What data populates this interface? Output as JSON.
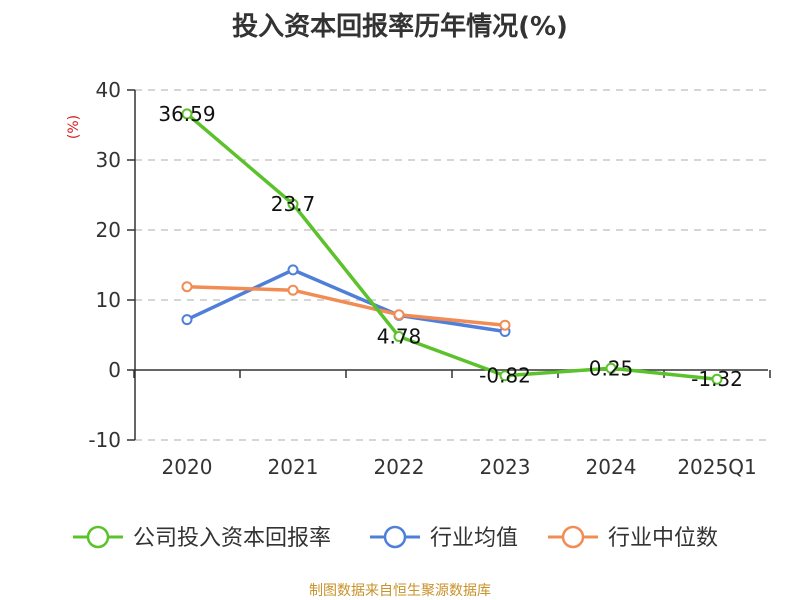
{
  "chart_data": {
    "type": "line",
    "title": "投入资本回报率历年情况(%)",
    "ylabel": "(%)",
    "xlabel": "",
    "ylim": [
      -10,
      40
    ],
    "yticks": [
      -10,
      0,
      10,
      20,
      30,
      40
    ],
    "categories": [
      "2020",
      "2021",
      "2022",
      "2023",
      "2024",
      "2025Q1"
    ],
    "grid": true,
    "legend_position": "bottom",
    "series": [
      {
        "name": "公司投入资本回报率",
        "color": "#5cc22c",
        "values": [
          36.59,
          23.7,
          4.78,
          -0.82,
          0.25,
          -1.32
        ],
        "labels": [
          "36.59",
          "23.7",
          "4.78",
          "-0.82",
          "0.25",
          "-1.32"
        ]
      },
      {
        "name": "行业均值",
        "color": "#4f7fd9",
        "values": [
          7.2,
          14.3,
          7.8,
          5.5,
          null,
          null
        ]
      },
      {
        "name": "行业中位数",
        "color": "#f28c55",
        "values": [
          11.9,
          11.4,
          7.9,
          6.4,
          null,
          null
        ]
      }
    ]
  },
  "source": "制图数据来自恒生聚源数据库"
}
